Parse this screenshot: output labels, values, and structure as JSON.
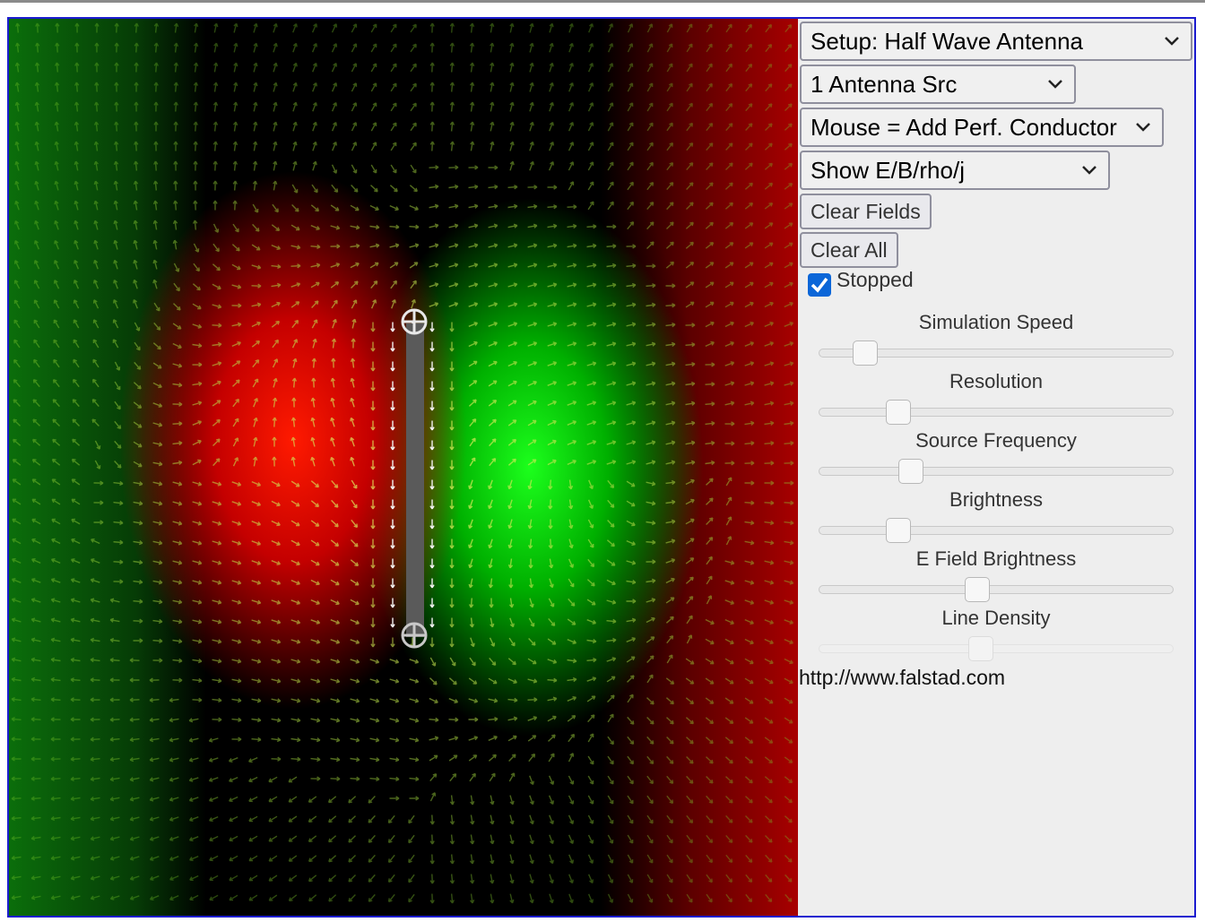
{
  "controls": {
    "setup_select": "Setup: Half Wave Antenna",
    "source_select": "1 Antenna Src",
    "mouse_select": "Mouse = Add Perf. Conductor",
    "show_select": "Show E/B/rho/j",
    "clear_fields": "Clear Fields",
    "clear_all": "Clear All",
    "stopped_label": "Stopped",
    "stopped": true
  },
  "sliders": [
    {
      "label": "Simulation Speed",
      "value": 0.1
    },
    {
      "label": "Resolution",
      "value": 0.2
    },
    {
      "label": "Source Frequency",
      "value": 0.24
    },
    {
      "label": "Brightness",
      "value": 0.2
    },
    {
      "label": "E Field Brightness",
      "value": 0.44
    },
    {
      "label": "Line Density",
      "value": 0.45,
      "disabled": true
    }
  ],
  "footer": {
    "link": "http://www.falstad.com"
  },
  "colors": {
    "frame": "#1c1ccf",
    "positive": "#ff1a00",
    "negative": "#1cff1c",
    "checkbox": "#0b66d8"
  },
  "icons": [
    "chevron-down-icon",
    "checkmark-icon",
    "crosshair-handle-icon"
  ]
}
